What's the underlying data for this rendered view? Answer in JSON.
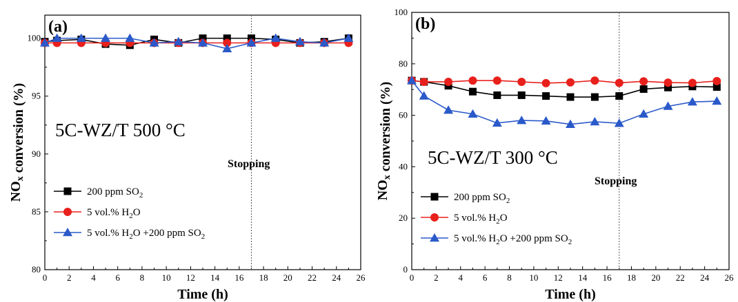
{
  "chart_data": [
    {
      "type": "line",
      "panel_label": "(a)",
      "annotation": "5C-WZ/T 500 °C",
      "stop_label": "Stopping",
      "stop_x": 17,
      "xlabel": "Time (h)",
      "ylabel": "NOx conversion (%)",
      "xlim": [
        0,
        26
      ],
      "ylim": [
        80,
        102
      ],
      "xticks": [
        0,
        2,
        4,
        6,
        8,
        10,
        12,
        14,
        16,
        18,
        20,
        22,
        24,
        26
      ],
      "yticks": [
        80,
        85,
        90,
        95,
        100
      ],
      "legend_position": "bottom-left",
      "x": [
        0,
        1,
        3,
        5,
        7,
        9,
        11,
        13,
        15,
        17,
        19,
        21,
        23,
        25
      ],
      "series": [
        {
          "name": "200 ppm SO2",
          "color": "#000000",
          "marker": "square",
          "values": [
            99.7,
            99.8,
            99.9,
            99.5,
            99.4,
            99.9,
            99.6,
            100.0,
            100.0,
            100.0,
            99.9,
            99.6,
            99.7,
            100.0
          ]
        },
        {
          "name": "5 vol.% H2O",
          "color": "#e8201c",
          "marker": "circle",
          "values": [
            99.6,
            99.6,
            99.6,
            99.6,
            99.6,
            99.6,
            99.6,
            99.6,
            99.6,
            99.6,
            99.6,
            99.6,
            99.6,
            99.6
          ]
        },
        {
          "name": "5 vol.% H2O +200 ppm SO2",
          "color": "#2a59c9",
          "marker": "triangle",
          "values": [
            99.6,
            100.0,
            100.0,
            100.0,
            100.0,
            99.6,
            99.7,
            99.6,
            99.1,
            99.6,
            100.0,
            99.7,
            99.6,
            100.0
          ]
        }
      ]
    },
    {
      "type": "line",
      "panel_label": "(b)",
      "annotation": "5C-WZ/T 300 °C",
      "stop_label": "Stopping",
      "stop_x": 17,
      "xlabel": "Time (h)",
      "ylabel": "NOx conversion (%)",
      "xlim": [
        0,
        26
      ],
      "ylim": [
        0,
        100
      ],
      "xticks": [
        0,
        2,
        4,
        6,
        8,
        10,
        12,
        14,
        16,
        18,
        20,
        22,
        24,
        26
      ],
      "yticks": [
        0,
        20,
        40,
        60,
        80,
        100
      ],
      "legend_position": "bottom-left",
      "x": [
        0,
        1,
        3,
        5,
        7,
        9,
        11,
        13,
        15,
        17,
        19,
        21,
        23,
        25
      ],
      "series": [
        {
          "name": "200 ppm SO2",
          "color": "#000000",
          "marker": "square",
          "values": [
            73.5,
            73.0,
            71.5,
            69.2,
            67.8,
            67.8,
            67.5,
            67.1,
            67.1,
            67.5,
            70.2,
            70.8,
            71.2,
            71.0
          ]
        },
        {
          "name": "5 vol.% H2O",
          "color": "#e8201c",
          "marker": "circle",
          "values": [
            73.5,
            73.0,
            73.0,
            73.5,
            73.5,
            73.0,
            72.5,
            72.8,
            73.5,
            72.6,
            73.2,
            72.7,
            72.6,
            73.3
          ]
        },
        {
          "name": "5 vol.% H2O +200 ppm SO2",
          "color": "#2a59c9",
          "marker": "triangle",
          "values": [
            73.5,
            67.5,
            62.0,
            60.5,
            57.0,
            58.0,
            57.8,
            56.5,
            57.5,
            56.9,
            60.5,
            63.5,
            65.2,
            65.5
          ]
        }
      ]
    }
  ]
}
